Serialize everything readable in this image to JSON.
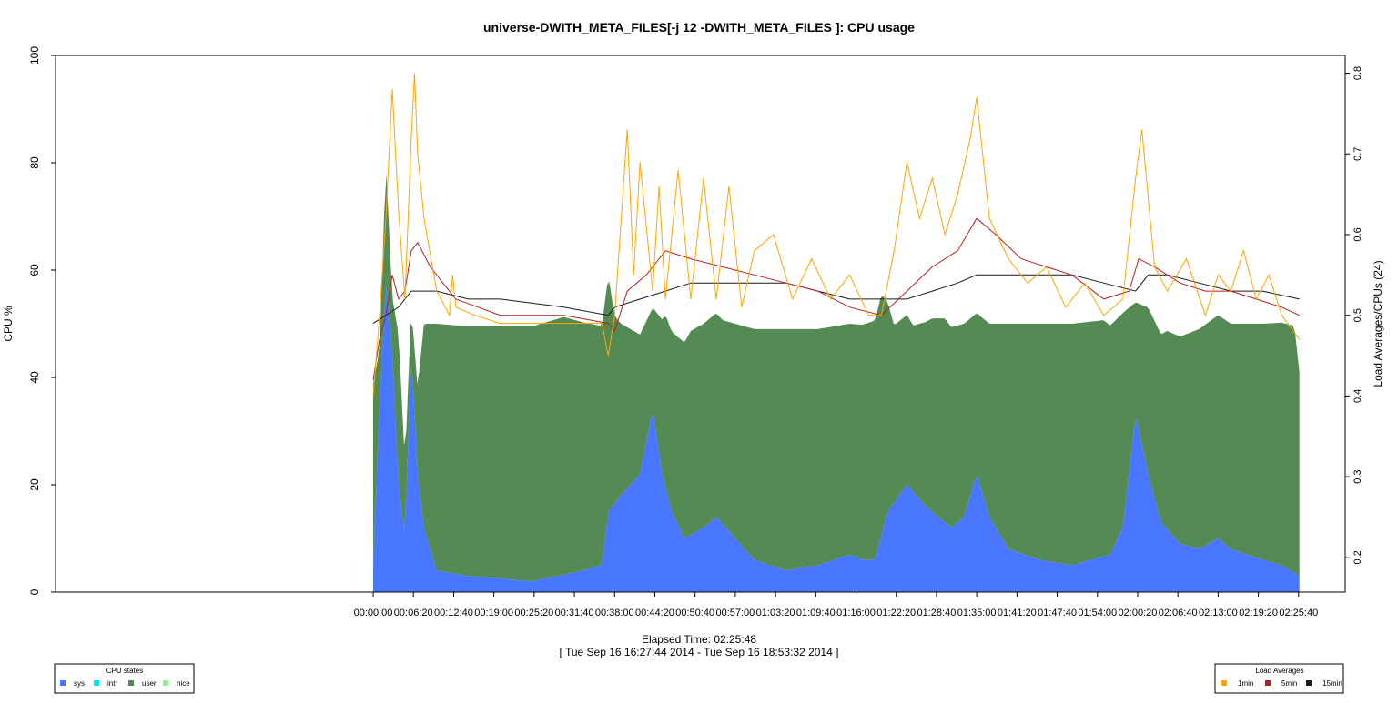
{
  "chart_data": {
    "type": "area",
    "title": "universe-DWITH_META_FILES[-j 12 -DWITH_META_FILES ]: CPU usage",
    "ylabel": "CPU %",
    "y2label": "Load Averages/CPUs (24)",
    "xlabel": "Elapsed Time: 02:25:48",
    "xsublabel": "[ Tue Sep 16 16:27:44 2014 - Tue Sep 16 18:53:32 2014 ]",
    "ylim": [
      0,
      100
    ],
    "y2lim": [
      0.157,
      0.822
    ],
    "xlim_seconds": [
      -3000,
      9180
    ],
    "y_ticks": [
      "0",
      "20",
      "40",
      "60",
      "80",
      "100"
    ],
    "y2_ticks": [
      "0.2",
      "0.3",
      "0.4",
      "0.5",
      "0.6",
      "0.7",
      "0.8"
    ],
    "x_ticks": [
      "00:00:00",
      "00:06:20",
      "00:12:40",
      "00:19:00",
      "00:25:20",
      "00:31:40",
      "00:38:00",
      "00:44:20",
      "00:50:40",
      "00:57:00",
      "01:03:20",
      "01:09:40",
      "01:16:00",
      "01:22:20",
      "01:28:40",
      "01:35:00",
      "01:41:20",
      "01:47:40",
      "01:54:00",
      "02:00:20",
      "02:06:40",
      "02:13:00",
      "02:19:20",
      "02:25:40"
    ],
    "grid": false,
    "cpu_legend": {
      "title": "CPU states",
      "placement": "bottom-left",
      "items": [
        {
          "label": "sys",
          "color": "#4876ff"
        },
        {
          "label": "intr",
          "color": "#00e5ee"
        },
        {
          "label": "user",
          "color": "#548b54"
        },
        {
          "label": "nice",
          "color": "#90ee90"
        }
      ]
    },
    "load_legend": {
      "title": "Load Averages",
      "placement": "bottom-right",
      "items": [
        {
          "label": "1min",
          "color": "#ffa500"
        },
        {
          "label": "5min",
          "color": "#b22222"
        },
        {
          "label": "15min",
          "color": "#1a1a1a"
        }
      ]
    },
    "sys_series": {
      "name": "sys",
      "x": [
        "00:00:00",
        "00:01:00",
        "00:02:00",
        "00:03:00",
        "00:04:00",
        "00:05:00",
        "00:06:00",
        "00:07:00",
        "00:08:00",
        "00:10:00",
        "00:15:00",
        "00:25:00",
        "00:33:00",
        "00:36:00",
        "00:37:00",
        "00:39:00",
        "00:42:00",
        "00:44:00",
        "00:45:30",
        "00:47:00",
        "00:49:00",
        "00:52:00",
        "00:54:00",
        "00:57:00",
        "01:00:00",
        "01:05:00",
        "01:10:00",
        "01:15:00",
        "01:17:00",
        "01:19:00",
        "01:21:00",
        "01:24:00",
        "01:27:00",
        "01:29:00",
        "01:31:00",
        "01:33:00",
        "01:35:00",
        "01:37:00",
        "01:40:00",
        "01:45:00",
        "01:50:00",
        "01:56:00",
        "01:58:00",
        "02:00:00",
        "02:02:00",
        "02:04:00",
        "02:07:00",
        "02:10:00",
        "02:13:00",
        "02:15:00",
        "02:20:00",
        "02:23:00",
        "02:25:48"
      ],
      "values": [
        5,
        35,
        58,
        45,
        20,
        10,
        45,
        22,
        12,
        4,
        3,
        2,
        4,
        5,
        15,
        18,
        22,
        34,
        22,
        15,
        10,
        12,
        14,
        10,
        6,
        4,
        5,
        7,
        6,
        6,
        15,
        20,
        16,
        14,
        12,
        14,
        22,
        14,
        8,
        6,
        5,
        7,
        12,
        33,
        22,
        13,
        9,
        8,
        10,
        8,
        6,
        5,
        3
      ]
    },
    "user_series": {
      "name": "user",
      "x": [
        "00:00:00",
        "00:01:00",
        "00:02:00",
        "00:03:00",
        "00:04:00",
        "00:05:00",
        "00:06:00",
        "00:07:00",
        "00:08:00",
        "00:10:00",
        "00:20:00",
        "00:30:00",
        "00:37:00",
        "00:38:00",
        "00:39:00",
        "00:42:00",
        "00:44:00",
        "00:46:00",
        "00:50:00",
        "00:55:00",
        "01:00:00",
        "01:05:00",
        "01:10:00",
        "01:15:00",
        "01:20:00",
        "01:22:00",
        "01:25:00",
        "01:28:00",
        "01:30:00",
        "01:33:00",
        "01:35:00",
        "01:37:00",
        "01:40:00",
        "01:45:00",
        "01:50:00",
        "01:55:00",
        "01:58:00",
        "02:00:00",
        "02:02:00",
        "02:05:00",
        "02:10:00",
        "02:15:00",
        "02:20:00",
        "02:25:00",
        "02:25:48"
      ],
      "values": [
        34,
        10,
        22,
        10,
        28,
        14,
        8,
        16,
        38,
        46,
        47,
        48,
        44,
        35,
        32,
        26,
        19,
        32,
        38,
        38,
        43,
        45,
        44,
        43,
        45,
        33,
        31,
        36,
        38,
        36,
        30,
        36,
        42,
        44,
        45,
        44,
        40,
        21,
        31,
        37,
        41,
        42,
        44,
        46,
        38
      ]
    },
    "load_1min": {
      "name": "1min",
      "x": [
        "00:00:00",
        "00:01:00",
        "00:02:00",
        "00:03:00",
        "00:04:00",
        "00:05:00",
        "00:06:00",
        "00:06:30",
        "00:07:00",
        "00:08:00",
        "00:10:00",
        "00:12:00",
        "00:12:30",
        "00:13:00",
        "00:16:00",
        "00:20:00",
        "00:25:00",
        "00:30:00",
        "00:36:00",
        "00:37:00",
        "00:38:00",
        "00:40:00",
        "00:41:00",
        "00:42:00",
        "00:44:00",
        "00:45:00",
        "00:46:00",
        "00:48:00",
        "00:50:00",
        "00:52:00",
        "00:54:00",
        "00:56:00",
        "00:58:00",
        "01:00:00",
        "01:03:00",
        "01:06:00",
        "01:09:00",
        "01:12:00",
        "01:15:00",
        "01:18:00",
        "01:20:00",
        "01:22:00",
        "01:24:00",
        "01:26:00",
        "01:28:00",
        "01:30:00",
        "01:32:00",
        "01:34:00",
        "01:35:00",
        "01:37:00",
        "01:40:00",
        "01:43:00",
        "01:46:00",
        "01:49:00",
        "01:52:00",
        "01:55:00",
        "01:58:00",
        "02:00:00",
        "02:01:00",
        "02:03:00",
        "02:05:00",
        "02:08:00",
        "02:11:00",
        "02:13:00",
        "02:15:00",
        "02:17:00",
        "02:19:00",
        "02:21:00",
        "02:23:00",
        "02:25:48"
      ],
      "values": [
        0.4,
        0.5,
        0.62,
        0.78,
        0.63,
        0.52,
        0.72,
        0.8,
        0.7,
        0.62,
        0.53,
        0.5,
        0.55,
        0.51,
        0.5,
        0.49,
        0.49,
        0.49,
        0.49,
        0.45,
        0.5,
        0.73,
        0.55,
        0.69,
        0.53,
        0.66,
        0.52,
        0.68,
        0.52,
        0.67,
        0.52,
        0.66,
        0.51,
        0.58,
        0.6,
        0.52,
        0.57,
        0.52,
        0.55,
        0.5,
        0.5,
        0.58,
        0.69,
        0.62,
        0.67,
        0.6,
        0.65,
        0.72,
        0.77,
        0.62,
        0.57,
        0.54,
        0.56,
        0.51,
        0.54,
        0.5,
        0.52,
        0.67,
        0.73,
        0.56,
        0.53,
        0.57,
        0.5,
        0.55,
        0.53,
        0.58,
        0.52,
        0.55,
        0.5,
        0.47
      ]
    },
    "load_5min": {
      "name": "5min",
      "x": [
        "00:00:00",
        "00:01:00",
        "00:02:00",
        "00:03:00",
        "00:04:00",
        "00:05:00",
        "00:06:00",
        "00:07:00",
        "00:09:00",
        "00:13:00",
        "00:20:00",
        "00:30:00",
        "00:37:00",
        "00:38:00",
        "00:40:00",
        "00:43:00",
        "00:46:00",
        "00:50:00",
        "00:55:00",
        "01:00:00",
        "01:05:00",
        "01:10:00",
        "01:15:00",
        "01:20:00",
        "01:24:00",
        "01:28:00",
        "01:32:00",
        "01:35:00",
        "01:38:00",
        "01:42:00",
        "01:46:00",
        "01:50:00",
        "01:55:00",
        "01:59:00",
        "02:00:30",
        "02:03:00",
        "02:07:00",
        "02:11:00",
        "02:15:00",
        "02:19:00",
        "02:23:00",
        "02:25:48"
      ],
      "values": [
        0.42,
        0.47,
        0.5,
        0.55,
        0.52,
        0.53,
        0.58,
        0.59,
        0.56,
        0.52,
        0.5,
        0.5,
        0.49,
        0.48,
        0.53,
        0.55,
        0.58,
        0.57,
        0.56,
        0.55,
        0.54,
        0.53,
        0.51,
        0.5,
        0.53,
        0.56,
        0.58,
        0.62,
        0.6,
        0.57,
        0.56,
        0.55,
        0.52,
        0.53,
        0.57,
        0.56,
        0.54,
        0.53,
        0.53,
        0.52,
        0.51,
        0.5
      ]
    },
    "load_15min": {
      "name": "15min",
      "x": [
        "00:00:00",
        "00:02:00",
        "00:04:00",
        "00:06:00",
        "00:08:00",
        "00:10:00",
        "00:15:00",
        "00:20:00",
        "00:30:00",
        "00:37:00",
        "00:38:00",
        "00:42:00",
        "00:46:00",
        "00:50:00",
        "00:55:00",
        "01:00:00",
        "01:05:00",
        "01:10:00",
        "01:15:00",
        "01:20:00",
        "01:24:00",
        "01:28:00",
        "01:32:00",
        "01:35:00",
        "01:40:00",
        "01:45:00",
        "01:50:00",
        "01:55:00",
        "02:00:00",
        "02:02:00",
        "02:05:00",
        "02:10:00",
        "02:15:00",
        "02:20:00",
        "02:25:48"
      ],
      "values": [
        0.49,
        0.5,
        0.51,
        0.53,
        0.53,
        0.53,
        0.52,
        0.52,
        0.51,
        0.5,
        0.51,
        0.52,
        0.53,
        0.54,
        0.54,
        0.54,
        0.54,
        0.53,
        0.52,
        0.52,
        0.52,
        0.53,
        0.54,
        0.55,
        0.55,
        0.55,
        0.55,
        0.54,
        0.53,
        0.55,
        0.55,
        0.54,
        0.53,
        0.53,
        0.52
      ]
    }
  }
}
